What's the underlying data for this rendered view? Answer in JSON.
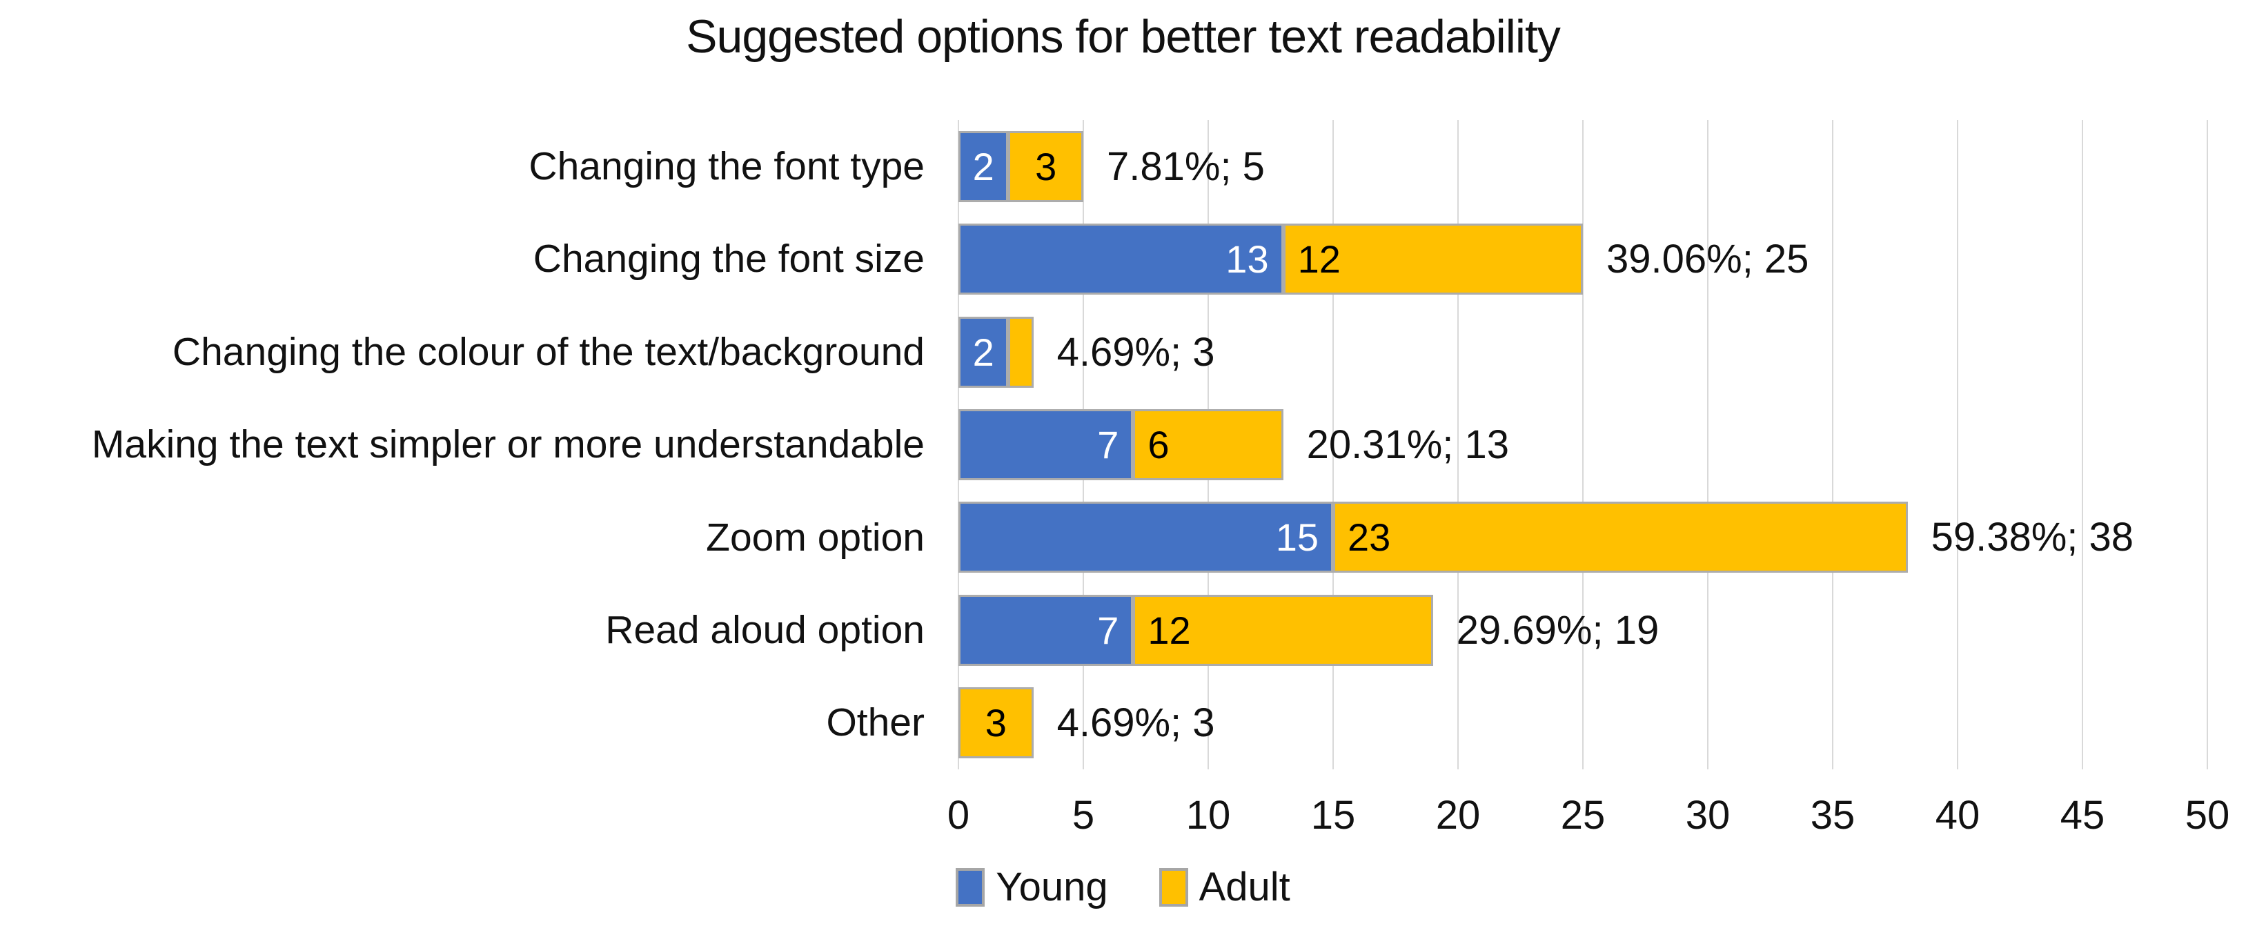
{
  "chart_data": {
    "type": "bar",
    "orientation": "horizontal",
    "stacked": true,
    "title": "Suggested options for better text readability",
    "categories": [
      "Changing the font type",
      "Changing the font size",
      "Changing the colour of the text/background",
      "Making the text simpler or more understandable",
      "Zoom option",
      "Read aloud option",
      "Other"
    ],
    "series": [
      {
        "name": "Young",
        "color": "#4472C4",
        "label_color": "#FFFFFF",
        "label_align": "end",
        "values": [
          2,
          13,
          2,
          7,
          15,
          7,
          0
        ],
        "labels": [
          "2",
          "13",
          "2",
          "7",
          "15",
          "7",
          ""
        ]
      },
      {
        "name": "Adult",
        "color": "#FFC000",
        "label_color": "#000000",
        "label_align": "start",
        "values": [
          3,
          12,
          1,
          6,
          23,
          12,
          3
        ],
        "labels": [
          "3",
          "12",
          "",
          "6",
          "23",
          "12",
          "3"
        ]
      }
    ],
    "total_labels": [
      "7.81%; 5",
      "39.06%; 25",
      "4.69%; 3",
      "20.31%; 13",
      "59.38%; 38",
      "29.69%; 19",
      "4.69%; 3"
    ],
    "xlim": [
      0,
      50
    ],
    "x_ticks": [
      0,
      5,
      10,
      15,
      20,
      25,
      30,
      35,
      40,
      45,
      50
    ],
    "grid": true,
    "legend": {
      "position": "bottom",
      "entries": [
        {
          "label": "Young",
          "color": "#4472C4"
        },
        {
          "label": "Adult",
          "color": "#FFC000"
        }
      ]
    },
    "colors": {
      "gridline": "#D9D9D9",
      "bar_border": "#ACACAC",
      "text": "#111111"
    }
  }
}
